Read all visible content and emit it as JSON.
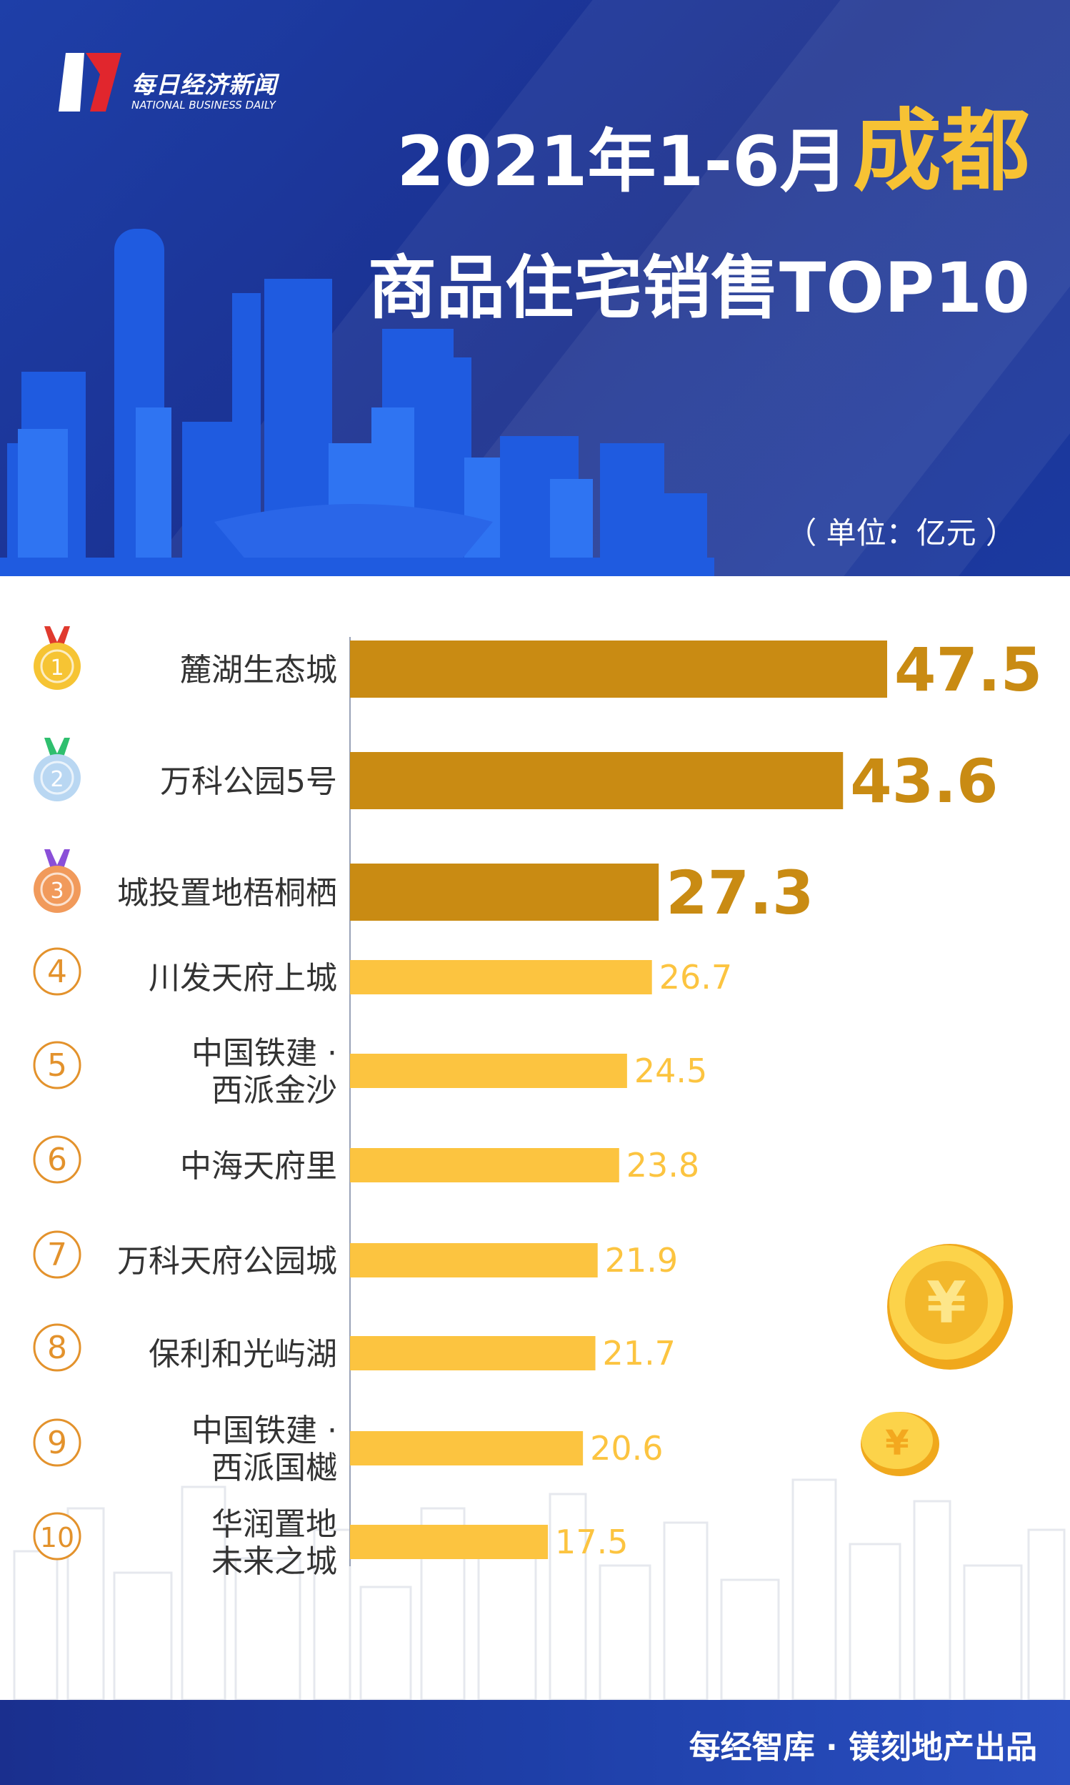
{
  "header": {
    "brand_cn": "每日经济新闻",
    "brand_en": "NATIONAL BUSINESS DAILY",
    "title_period": "2021年1-6月",
    "title_city": "成都",
    "title_line2": "商品住宅销售TOP10",
    "unit": "（ 单位：亿元 ）"
  },
  "footer": {
    "credit": "每经智库 · 镁刻地产出品"
  },
  "colors": {
    "top3_bar": "#c98b13",
    "other_bar": "#fcc440",
    "header_bg": "#1e3fa8",
    "title_accent": "#f7c234",
    "rank_circle": "#e3922c"
  },
  "chart_data": {
    "type": "bar",
    "orientation": "horizontal",
    "unit": "亿元",
    "ranks": [
      "1",
      "2",
      "3",
      "4",
      "5",
      "6",
      "7",
      "8",
      "9",
      "10"
    ],
    "categories": [
      [
        "麓湖生态城"
      ],
      [
        "万科公园5号"
      ],
      [
        "城投置地梧桐栖"
      ],
      [
        "川发天府上城"
      ],
      [
        "中国铁建 ·",
        "西派金沙"
      ],
      [
        "中海天府里"
      ],
      [
        "万科天府公园城"
      ],
      [
        "保利和光屿湖"
      ],
      [
        "中国铁建 ·",
        "西派国樾"
      ],
      [
        "华润置地",
        "未来之城"
      ]
    ],
    "values": [
      47.5,
      43.6,
      27.3,
      26.7,
      24.5,
      23.8,
      21.9,
      21.7,
      20.6,
      17.5
    ],
    "medal_icons": [
      "gold-medal-icon",
      "silver-medal-icon",
      "bronze-medal-icon"
    ],
    "xlim": [
      0,
      47.5
    ],
    "grid": false
  }
}
